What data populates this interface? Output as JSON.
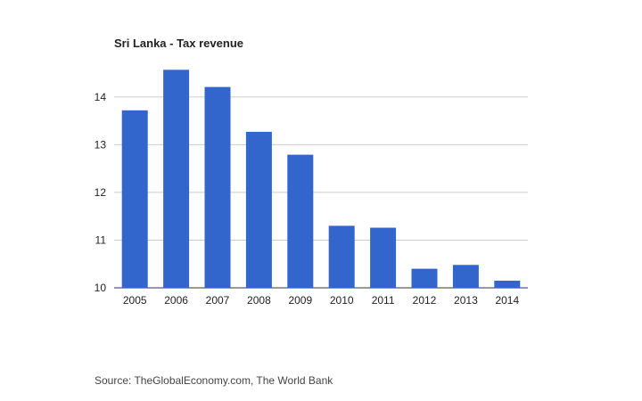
{
  "chart_data": {
    "type": "bar",
    "title": "Sri Lanka - Tax revenue",
    "categories": [
      "2005",
      "2006",
      "2007",
      "2008",
      "2009",
      "2010",
      "2011",
      "2012",
      "2013",
      "2014"
    ],
    "values": [
      13.72,
      14.57,
      14.21,
      13.27,
      12.79,
      11.3,
      11.26,
      10.4,
      10.48,
      10.15
    ],
    "xlabel": "",
    "ylabel": "",
    "ylim": [
      10,
      14.8
    ],
    "yticks": [
      10,
      11,
      12,
      13,
      14
    ],
    "grid": true,
    "legend": "none",
    "bar_color": "#3366cc",
    "grid_color": "#cccccc"
  },
  "source": "Source: TheGlobalEconomy.com, The World Bank"
}
